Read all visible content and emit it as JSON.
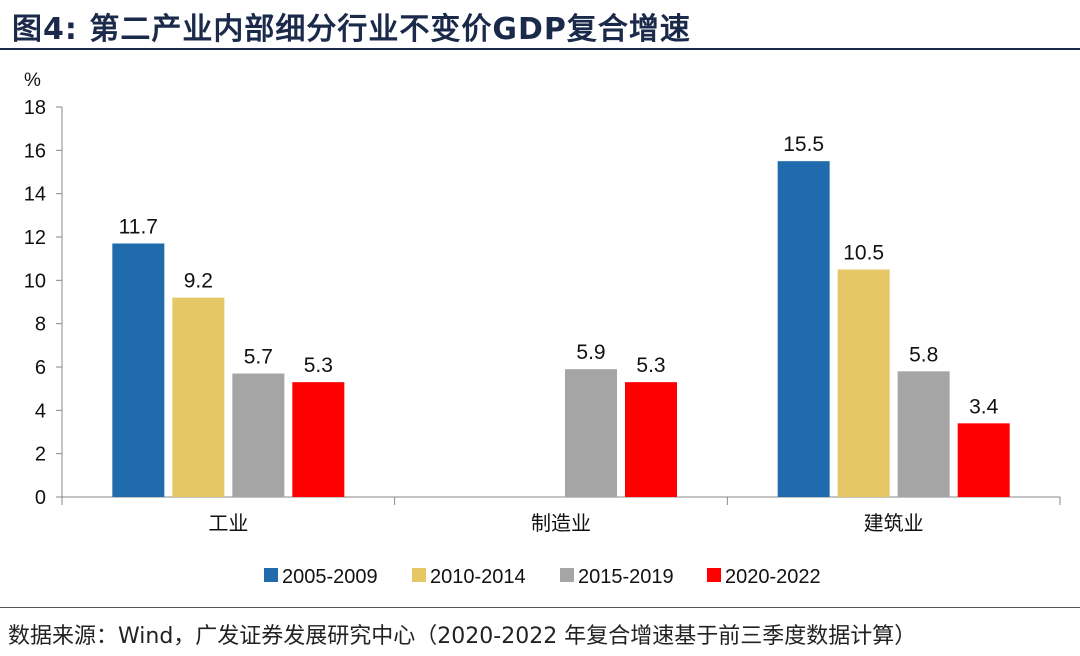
{
  "title": "图4:  第二产业内部细分行业不变价GDP复合增速",
  "source": "数据来源：Wind，广发证券发展研究中心（2020-2022 年复合增速基于前三季度数据计算）",
  "chart_data": {
    "type": "bar",
    "ylabel": "%",
    "ylim": [
      0,
      18
    ],
    "yticks": [
      0,
      2,
      4,
      6,
      8,
      10,
      12,
      14,
      16,
      18
    ],
    "categories": [
      "工业",
      "制造业",
      "建筑业"
    ],
    "series": [
      {
        "name": "2005-2009",
        "color": "#1f6bab",
        "values": [
          11.7,
          null,
          15.5
        ]
      },
      {
        "name": "2010-2014",
        "color": "#e5c766",
        "values": [
          9.2,
          null,
          10.5
        ]
      },
      {
        "name": "2015-2019",
        "color": "#a5a5a5",
        "values": [
          5.7,
          5.9,
          5.8
        ]
      },
      {
        "name": "2020-2022",
        "color": "#ff0000",
        "values": [
          5.3,
          5.3,
          3.4
        ]
      }
    ],
    "legend_position": "bottom",
    "grid": false
  }
}
